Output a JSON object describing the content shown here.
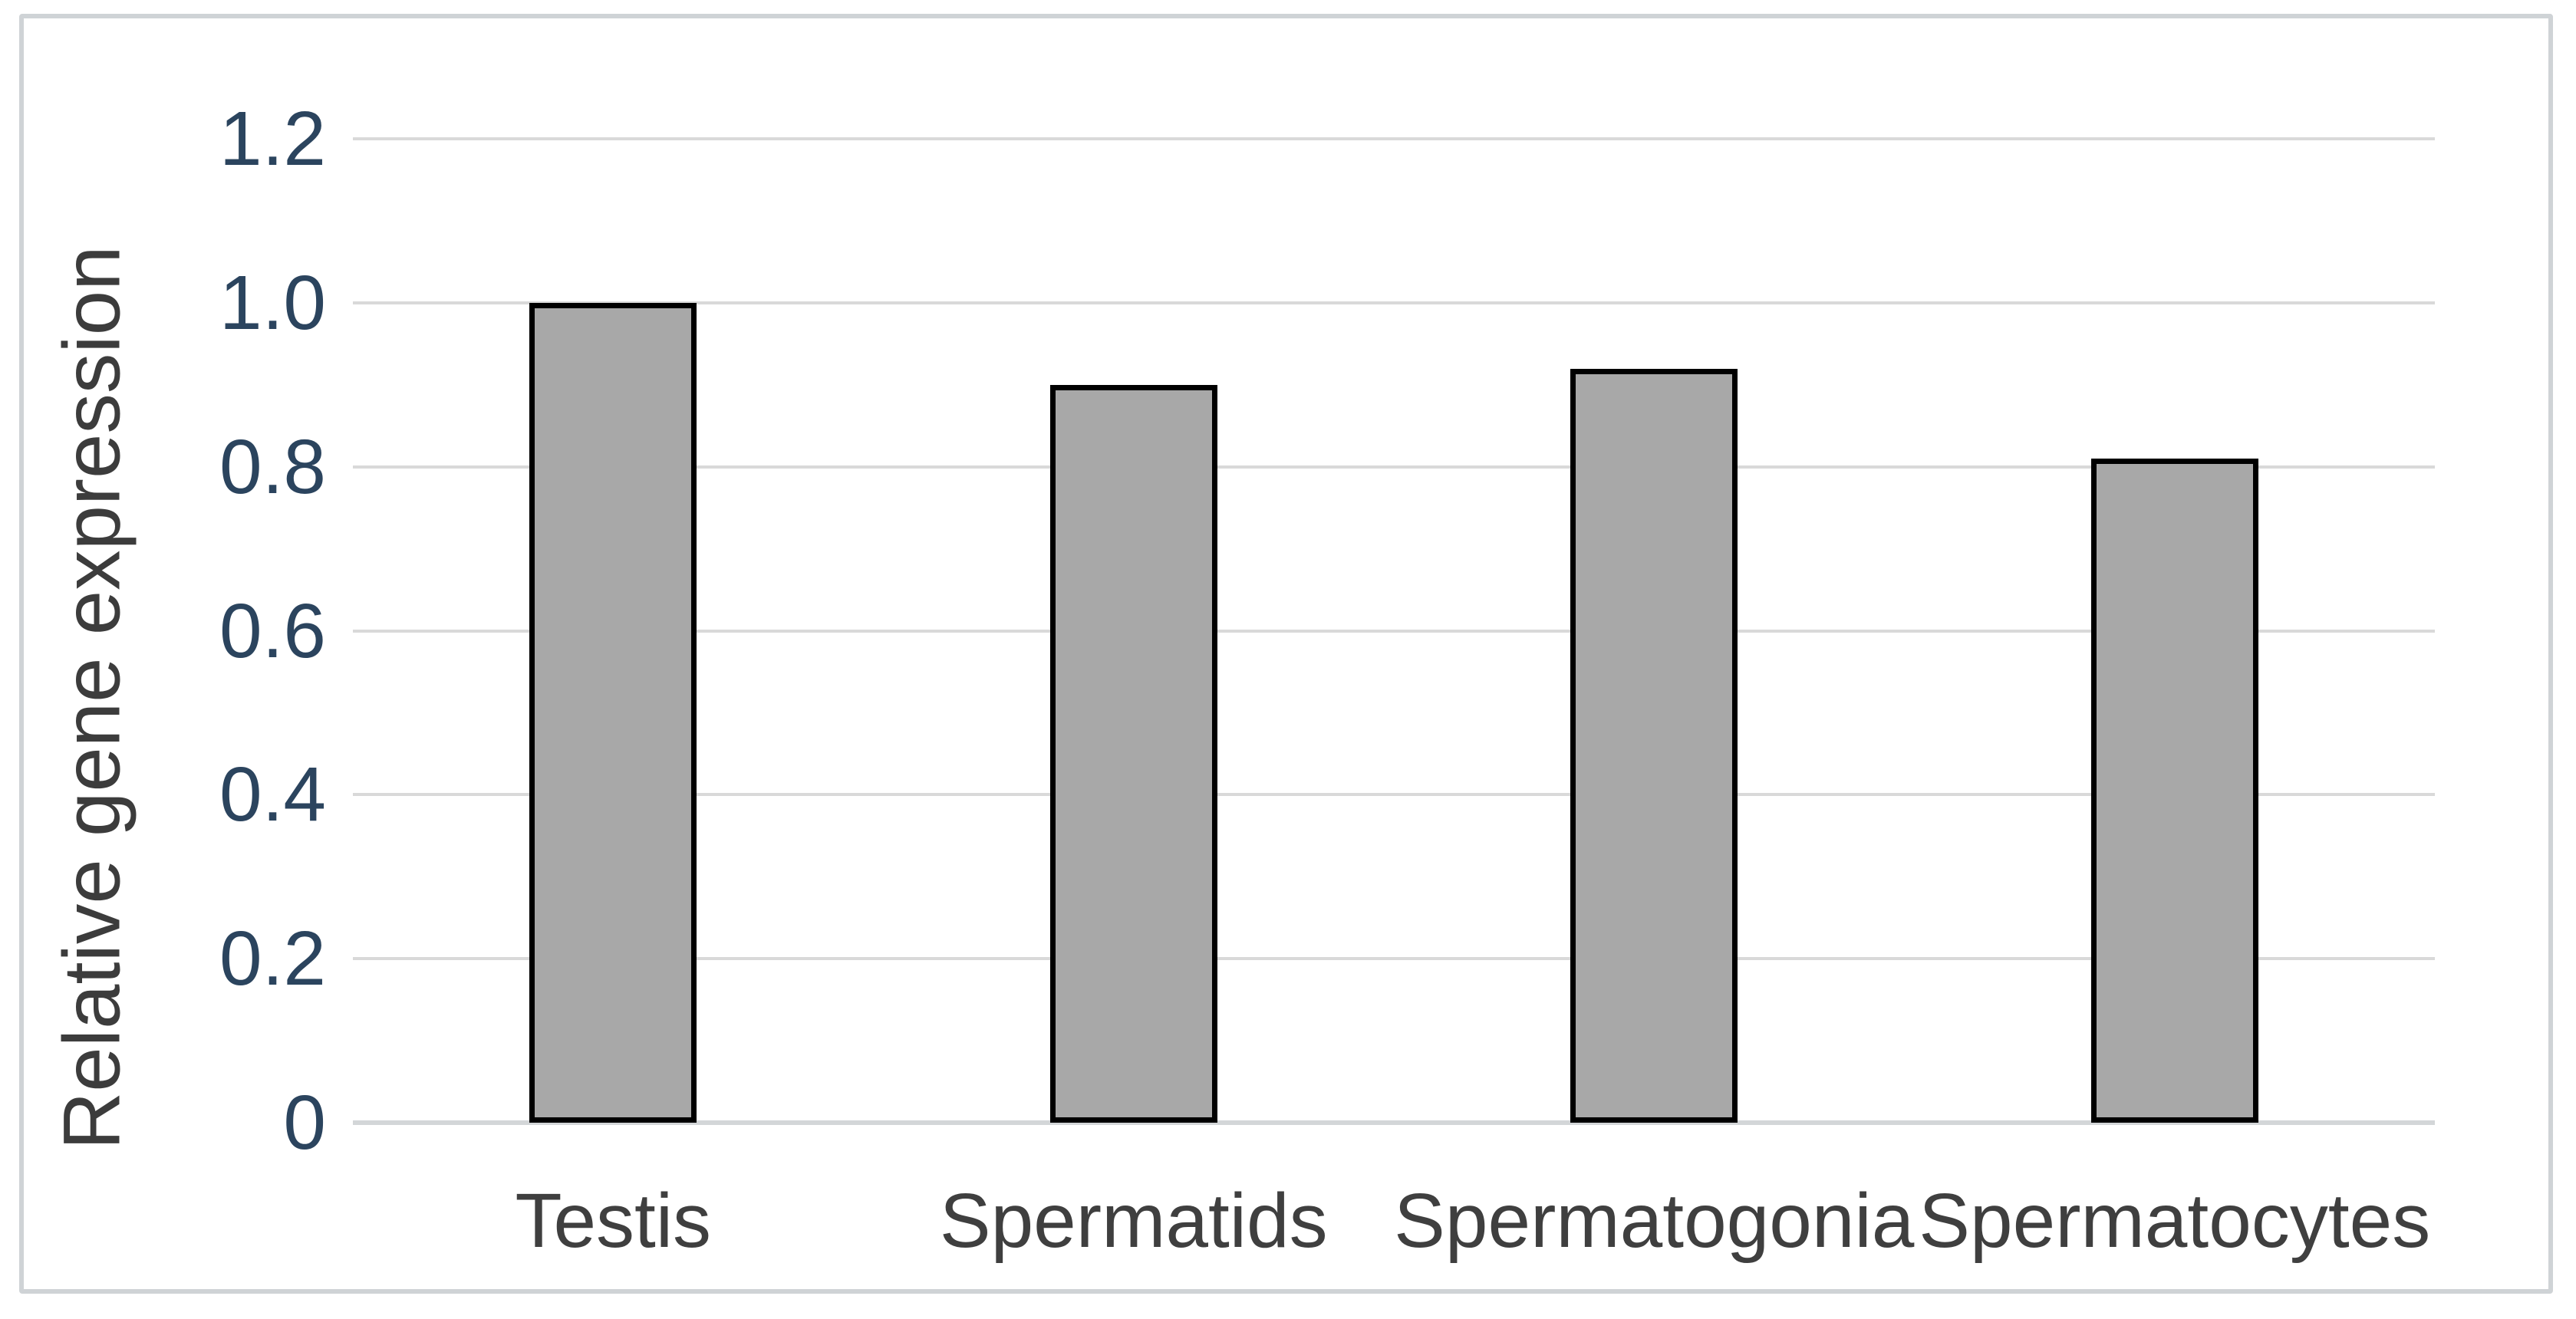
{
  "figure": {
    "background_color": "#ffffff",
    "border_color": "#cfd3d6"
  },
  "chart_data": {
    "type": "bar",
    "title": "",
    "categories": [
      "Testis",
      "Spermatids",
      "Spermatogonia",
      "Spermatocytes"
    ],
    "values": [
      1.0,
      0.9,
      0.92,
      0.81
    ],
    "xlabel": "",
    "ylabel": "Relative gene expression",
    "ylim": [
      0,
      1.2
    ],
    "ytick_step": 0.2,
    "ytick_labels": [
      "0",
      "0.2",
      "0.4",
      "0.6",
      "0.8",
      "1.0",
      "1.2"
    ],
    "grid": true,
    "legend": false,
    "colors": {
      "bar_fill": "#a8a8a8",
      "bar_border": "#000000",
      "gridline": "#d9d9d9",
      "axis_line": "#d3d6d8",
      "ytick_label": "#2b445e",
      "category_label": "#3f3f3f",
      "ylabel": "#3c3c3c"
    }
  }
}
